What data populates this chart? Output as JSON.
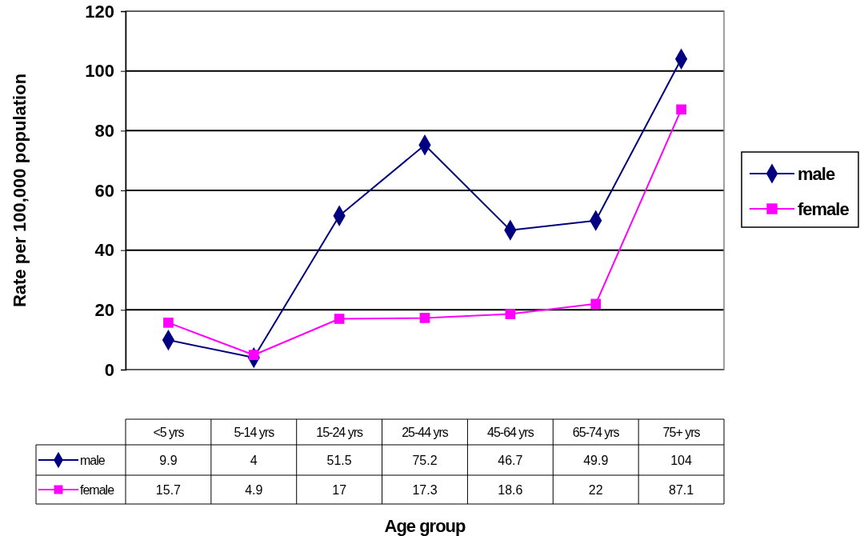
{
  "chart_data": {
    "type": "line",
    "xlabel": "Age group",
    "ylabel": "Rate per 100,000 population",
    "categories": [
      "<5 yrs",
      "5-14 yrs",
      "15-24 yrs",
      "25-44 yrs",
      "45-64 yrs",
      "65-74 yrs",
      "75+ yrs"
    ],
    "series": [
      {
        "name": "male",
        "color": "#000080",
        "marker": "diamond",
        "values": [
          9.9,
          4,
          51.5,
          75.2,
          46.7,
          49.9,
          104
        ]
      },
      {
        "name": "female",
        "color": "#ff00ff",
        "marker": "square",
        "values": [
          15.7,
          4.9,
          17,
          17.3,
          18.6,
          22,
          87.1
        ]
      }
    ],
    "ylim": [
      0,
      120
    ],
    "yticks": [
      0,
      20,
      40,
      60,
      80,
      100,
      120
    ],
    "grid": "y",
    "legend": "right",
    "data_labels": true,
    "line_style": "solid"
  }
}
